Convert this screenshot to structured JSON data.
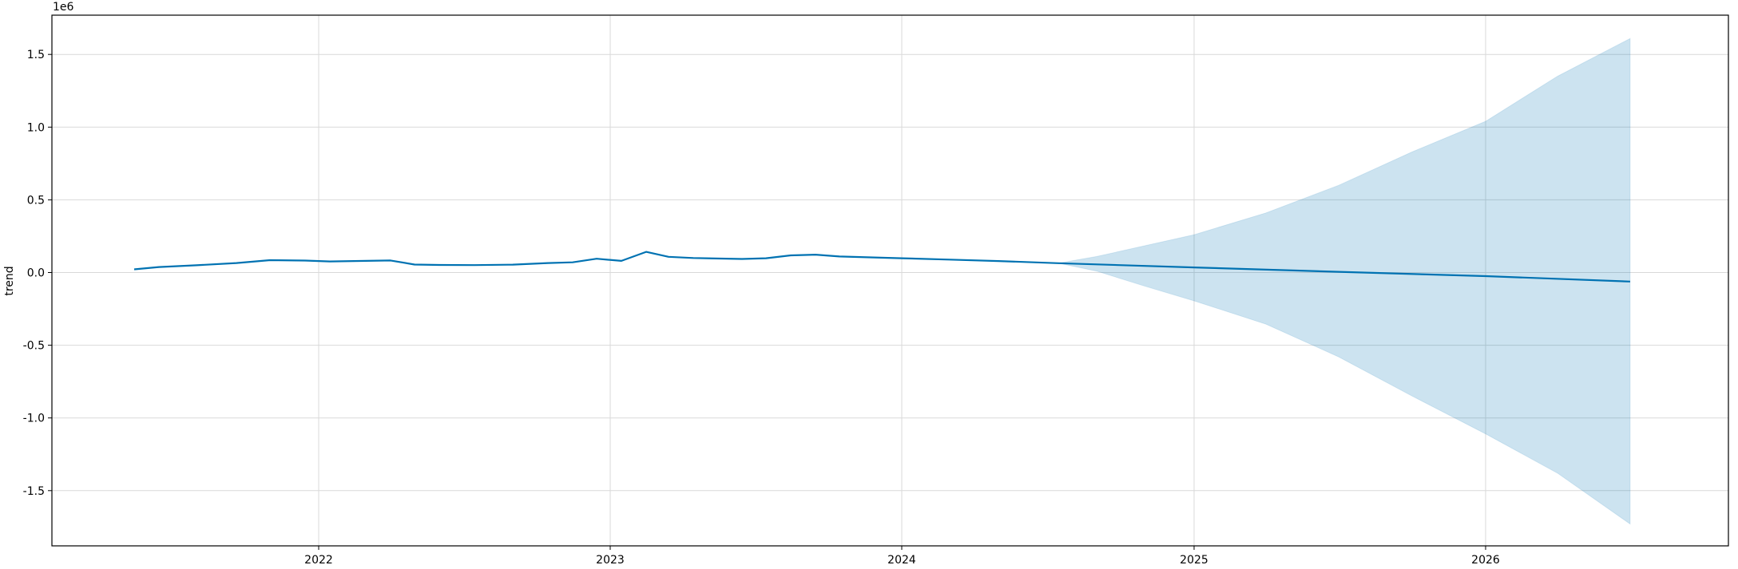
{
  "chart_data": {
    "type": "line",
    "title": "",
    "xlabel": "",
    "ylabel": "trend",
    "y_offset_label": "1e6",
    "y_scale_factor": 1000000,
    "xlim": [
      "2021-02-01",
      "2026-11-01"
    ],
    "ylim": [
      -1880000,
      1770000
    ],
    "grid": true,
    "colors": {
      "line": "#0072B2",
      "band": "#0072B2",
      "grid": "#d9d9d9"
    },
    "x_ticks": [
      {
        "date": "2022-01-01",
        "label": "2022"
      },
      {
        "date": "2023-01-01",
        "label": "2023"
      },
      {
        "date": "2024-01-01",
        "label": "2024"
      },
      {
        "date": "2025-01-01",
        "label": "2025"
      },
      {
        "date": "2026-01-01",
        "label": "2026"
      }
    ],
    "y_ticks": [
      {
        "value": 1500000,
        "label": "1.5"
      },
      {
        "value": 1000000,
        "label": "1.0"
      },
      {
        "value": 500000,
        "label": "0.5"
      },
      {
        "value": 0,
        "label": "0.0"
      },
      {
        "value": -500000,
        "label": "-0.5"
      },
      {
        "value": -1000000,
        "label": "-1.0"
      },
      {
        "value": -1500000,
        "label": "-1.5"
      }
    ],
    "series": [
      {
        "x": [
          "2021-05-15",
          "2021-06-15",
          "2021-08-01",
          "2021-09-20",
          "2021-11-01",
          "2021-12-15",
          "2022-01-15",
          "2022-03-01",
          "2022-04-01",
          "2022-05-01",
          "2022-06-01",
          "2022-07-15",
          "2022-09-01",
          "2022-10-15",
          "2022-11-15",
          "2022-12-15",
          "2023-01-15",
          "2023-02-15",
          "2023-03-15",
          "2023-04-15",
          "2023-06-15",
          "2023-07-15",
          "2023-08-15",
          "2023-09-15",
          "2023-10-15",
          "2024-01-01",
          "2024-03-01",
          "2024-05-01",
          "2024-07-15",
          "2025-01-01",
          "2025-07-01",
          "2026-01-01",
          "2026-07-01"
        ],
        "y": [
          22000,
          38000,
          50000,
          65000,
          85000,
          82000,
          76000,
          80000,
          83000,
          55000,
          52000,
          51000,
          54000,
          65000,
          70000,
          95000,
          80000,
          142000,
          108000,
          100000,
          93000,
          98000,
          118000,
          123000,
          110000,
          98000,
          89000,
          79000,
          64000,
          35000,
          5000,
          -25000,
          -62000
        ]
      }
    ],
    "uncertainty_band": {
      "x": [
        "2024-07-15",
        "2024-09-01",
        "2024-11-01",
        "2025-01-01",
        "2025-04-01",
        "2025-07-01",
        "2025-10-01",
        "2026-01-01",
        "2026-04-01",
        "2026-07-01"
      ],
      "upper": [
        64000,
        110000,
        185000,
        260000,
        410000,
        600000,
        830000,
        1040000,
        1350000,
        1610000
      ],
      "lower": [
        64000,
        10000,
        -95000,
        -195000,
        -355000,
        -580000,
        -850000,
        -1110000,
        -1380000,
        -1730000
      ]
    }
  }
}
